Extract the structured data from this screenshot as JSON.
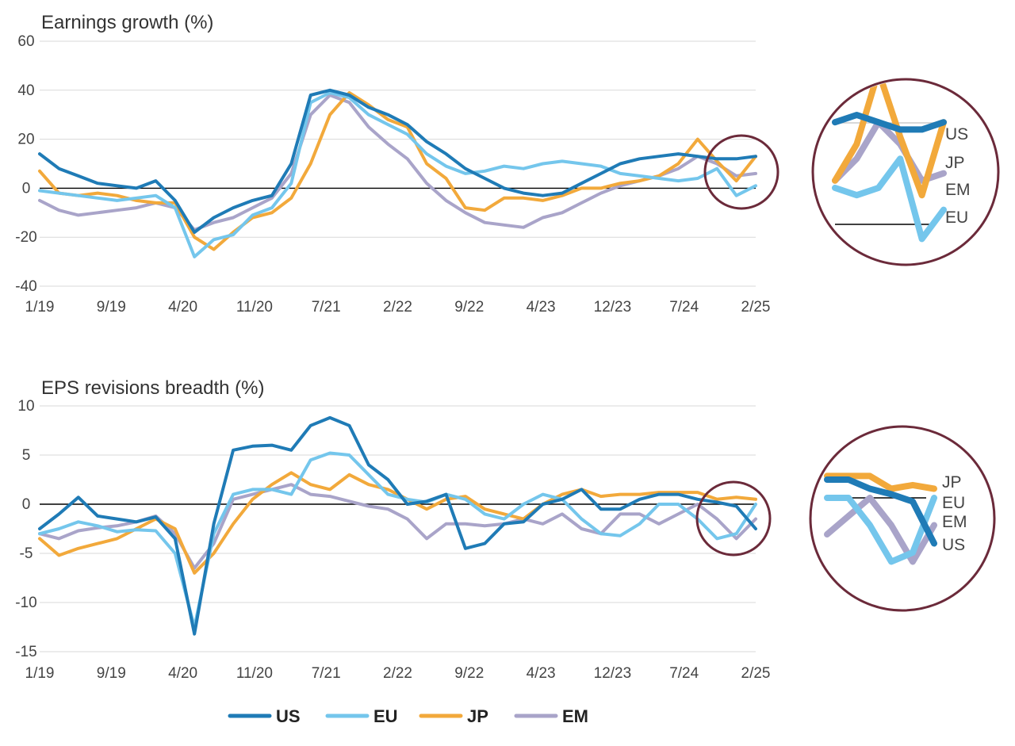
{
  "colors": {
    "US": "#1f7bb6",
    "EU": "#74c6ec",
    "JP": "#f2a93b",
    "EM": "#a9a4c9"
  },
  "legend": [
    {
      "key": "US",
      "label": "US"
    },
    {
      "key": "EU",
      "label": "EU"
    },
    {
      "key": "JP",
      "label": "JP"
    },
    {
      "key": "EM",
      "label": "EM"
    }
  ],
  "chart_data": [
    {
      "type": "line",
      "title": "Earnings growth (%)",
      "ylim": [
        -40,
        60
      ],
      "yticks": [
        "60",
        "40",
        "20",
        "0",
        "-20",
        "-40"
      ],
      "xticks": [
        "1/19",
        "9/19",
        "4/20",
        "11/20",
        "7/21",
        "2/22",
        "9/22",
        "4/23",
        "12/23",
        "7/24",
        "2/25"
      ],
      "x": [
        "1/19",
        "3/19",
        "5/19",
        "7/19",
        "9/19",
        "11/19",
        "1/20",
        "3/20",
        "5/20",
        "7/20",
        "9/20",
        "11/20",
        "1/21",
        "3/21",
        "5/21",
        "7/21",
        "9/21",
        "11/21",
        "1/22",
        "3/22",
        "5/22",
        "7/22",
        "9/22",
        "11/22",
        "1/23",
        "3/23",
        "5/23",
        "7/23",
        "9/23",
        "11/23",
        "1/24",
        "3/24",
        "5/24",
        "7/24",
        "9/24",
        "11/24",
        "1/25",
        "2/25"
      ],
      "series": [
        {
          "name": "US",
          "values": [
            14,
            8,
            5,
            2,
            1,
            0,
            3,
            -5,
            -18,
            -12,
            -8,
            -5,
            -3,
            10,
            38,
            40,
            38,
            33,
            30,
            26,
            19,
            14,
            8,
            4,
            0,
            -2,
            -3,
            -2,
            2,
            6,
            10,
            12,
            13,
            14,
            13,
            12,
            12,
            13
          ]
        },
        {
          "name": "EU",
          "values": [
            -1,
            -2,
            -3,
            -4,
            -5,
            -4,
            -3,
            -8,
            -28,
            -21,
            -19,
            -11,
            -8,
            2,
            35,
            39,
            37,
            30,
            26,
            22,
            14,
            9,
            6,
            7,
            9,
            8,
            10,
            11,
            10,
            9,
            6,
            5,
            4,
            3,
            4,
            8,
            -3,
            1
          ]
        },
        {
          "name": "JP",
          "values": [
            7,
            -2,
            -3,
            -2,
            -3,
            -5,
            -6,
            -6,
            -20,
            -25,
            -18,
            -12,
            -10,
            -4,
            10,
            30,
            39,
            34,
            28,
            25,
            10,
            4,
            -8,
            -9,
            -4,
            -4,
            -5,
            -3,
            0,
            0,
            2,
            3,
            5,
            10,
            20,
            11,
            3,
            13
          ]
        },
        {
          "name": "EM",
          "values": [
            -5,
            -9,
            -11,
            -10,
            -9,
            -8,
            -6,
            -8,
            -17,
            -14,
            -12,
            -8,
            -4,
            6,
            30,
            38,
            35,
            25,
            18,
            12,
            2,
            -5,
            -10,
            -14,
            -15,
            -16,
            -12,
            -10,
            -6,
            -2,
            1,
            3,
            5,
            8,
            13,
            10,
            5,
            6
          ]
        }
      ],
      "zoom_labels": [
        "US",
        "JP",
        "EM",
        "EU"
      ]
    },
    {
      "type": "line",
      "title": "EPS revisions breadth (%)",
      "ylim": [
        -15,
        10
      ],
      "yticks": [
        "10",
        "5",
        "0",
        "-5",
        "-10",
        "-15"
      ],
      "xticks": [
        "1/19",
        "9/19",
        "4/20",
        "11/20",
        "7/21",
        "2/22",
        "9/22",
        "4/23",
        "12/23",
        "7/24",
        "2/25"
      ],
      "x": [
        "1/19",
        "3/19",
        "5/19",
        "7/19",
        "9/19",
        "11/19",
        "1/20",
        "3/20",
        "5/20",
        "7/20",
        "9/20",
        "11/20",
        "1/21",
        "3/21",
        "5/21",
        "7/21",
        "9/21",
        "11/21",
        "1/22",
        "3/22",
        "5/22",
        "7/22",
        "9/22",
        "11/22",
        "1/23",
        "3/23",
        "5/23",
        "7/23",
        "9/23",
        "11/23",
        "1/24",
        "3/24",
        "5/24",
        "7/24",
        "9/24",
        "11/24",
        "1/25",
        "2/25"
      ],
      "series": [
        {
          "name": "US",
          "values": [
            -2.5,
            -1,
            0.7,
            -1.2,
            -1.5,
            -1.8,
            -1.3,
            -3.5,
            -13.2,
            -2,
            5.5,
            5.9,
            6,
            5.5,
            8,
            8.8,
            8,
            4,
            2.5,
            0,
            0.3,
            1,
            -4.5,
            -4,
            -2,
            -1.8,
            0,
            0.5,
            1.5,
            -0.5,
            -0.5,
            0.5,
            1,
            1,
            0.5,
            0.2,
            -0.2,
            -2.5
          ]
        },
        {
          "name": "EU",
          "values": [
            -3,
            -2.5,
            -1.8,
            -2.2,
            -2.8,
            -2.6,
            -2.7,
            -5,
            -12.5,
            -3,
            1,
            1.5,
            1.5,
            1,
            4.5,
            5.2,
            5,
            3,
            1,
            0.5,
            0.2,
            1,
            0.5,
            -1,
            -1.5,
            0,
            1,
            0.5,
            -1.5,
            -3,
            -3.2,
            -2,
            0,
            0,
            -1.5,
            -3.5,
            -3,
            0
          ]
        },
        {
          "name": "JP",
          "values": [
            -3.5,
            -5.2,
            -4.5,
            -4,
            -3.5,
            -2.5,
            -1.5,
            -2.5,
            -7,
            -5,
            -2,
            0.5,
            2,
            3.2,
            2,
            1.5,
            3,
            2,
            1.5,
            0.5,
            -0.5,
            0.5,
            0.8,
            -0.5,
            -1,
            -1.5,
            0,
            1,
            1.5,
            0.8,
            1,
            1,
            1.2,
            1.2,
            1.2,
            0.5,
            0.7,
            0.5
          ]
        },
        {
          "name": "EM",
          "values": [
            -3,
            -3.5,
            -2.7,
            -2.4,
            -2.2,
            -1.8,
            -1.2,
            -3,
            -6.5,
            -4,
            0.5,
            1,
            1.5,
            2,
            1,
            0.8,
            0.3,
            -0.2,
            -0.5,
            -1.5,
            -3.5,
            -2,
            -2,
            -2.2,
            -2,
            -1.5,
            -2,
            -1,
            -2.5,
            -3,
            -1,
            -1,
            -2,
            -1,
            0,
            -1.5,
            -3.5,
            -1.5
          ]
        }
      ],
      "zoom_labels": [
        "JP",
        "EU",
        "EM",
        "US"
      ]
    }
  ]
}
